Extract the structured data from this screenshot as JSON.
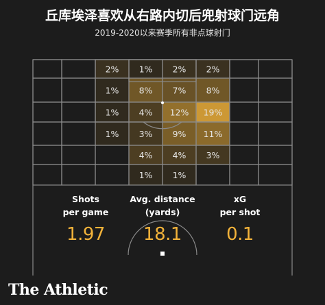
{
  "title": "丘库埃泽喜欢从右路内切后兜射球门远角",
  "subtitle": "2019-2020以来赛季所有非点球射门",
  "brand": "The Athletic",
  "colors": {
    "background": "#1c1c1c",
    "accent": "#f3b33a",
    "heat_max": "#f3b33a",
    "pitch_lines": "#8a8a8a"
  },
  "chart_data": {
    "type": "heatmap",
    "description_units": "share of shots by zone (%)",
    "rows": [
      [
        null,
        null,
        2,
        1,
        2,
        2,
        null,
        null
      ],
      [
        null,
        null,
        1,
        8,
        7,
        8,
        null,
        null
      ],
      [
        null,
        null,
        1,
        4,
        12,
        19,
        null,
        null
      ],
      [
        null,
        null,
        1,
        3,
        9,
        11,
        null,
        null
      ],
      [
        null,
        null,
        null,
        4,
        4,
        3,
        null,
        null
      ],
      [
        null,
        null,
        null,
        1,
        1,
        null,
        null,
        null
      ]
    ],
    "value_suffix": "%",
    "max_value": 19
  },
  "stats": [
    {
      "label_line1": "Shots",
      "label_line2": "per game",
      "value": "1.97"
    },
    {
      "label_line1": "Avg. distance",
      "label_line2": "(yards)",
      "value": "18.1"
    },
    {
      "label_line1": "xG",
      "label_line2": "per shot",
      "value": "0.1"
    }
  ]
}
